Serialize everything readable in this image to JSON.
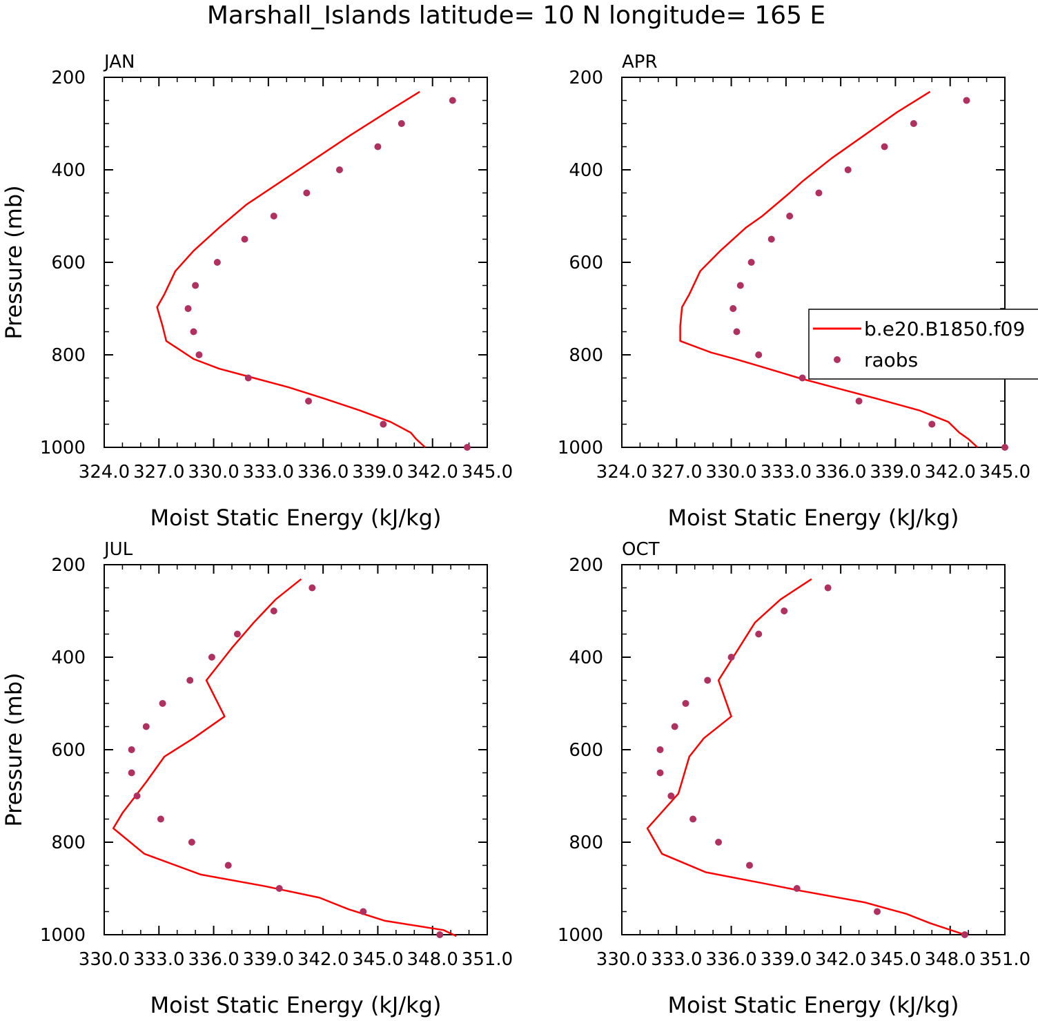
{
  "figure": {
    "title": "Marshall_Islands  latitude= 10 N longitude= 165 E"
  },
  "colors": {
    "model_line": "#ff0000",
    "raobs_marker": "#b03060",
    "axis": "#000000",
    "background": "#ffffff"
  },
  "legend": {
    "placement": "right edge of APR panel, middle",
    "model_label": "b.e20.B1850.f09",
    "obs_label": "raobs"
  },
  "chart_data": [
    {
      "panel": "JAN",
      "type": "line",
      "xlabel": "Moist Static Energy (kJ/kg)",
      "ylabel": "Pressure (mb)",
      "xlim": [
        324,
        345
      ],
      "ylim": [
        1000,
        200
      ],
      "x_ticks": [
        "324.0",
        "327.0",
        "330.0",
        "333.0",
        "336.0",
        "339.0",
        "342.0",
        "345.0"
      ],
      "y_ticks": [
        "200",
        "400",
        "600",
        "800",
        "1000"
      ],
      "grid": false,
      "series": [
        {
          "name": "b.e20.B1850.f09",
          "kind": "line",
          "points": [
            [
              341.3,
              231
            ],
            [
              339.5,
              275
            ],
            [
              337.5,
              325
            ],
            [
              335.6,
              375
            ],
            [
              333.7,
              425
            ],
            [
              331.8,
              475
            ],
            [
              330.3,
              525
            ],
            [
              328.9,
              575
            ],
            [
              327.9,
              619
            ],
            [
              327.3,
              669
            ],
            [
              326.9,
              697
            ],
            [
              327.2,
              738
            ],
            [
              327.4,
              770
            ],
            [
              328.9,
              809
            ],
            [
              330.3,
              830
            ],
            [
              332.2,
              850
            ],
            [
              334.1,
              870
            ],
            [
              336.1,
              895
            ],
            [
              338.0,
              920
            ],
            [
              339.7,
              945
            ],
            [
              340.8,
              968
            ],
            [
              341.1,
              982
            ],
            [
              341.6,
              1000
            ]
          ]
        },
        {
          "name": "raobs",
          "kind": "scatter",
          "points": [
            [
              343.1,
              250
            ],
            [
              340.3,
              300
            ],
            [
              339.0,
              350
            ],
            [
              336.9,
              400
            ],
            [
              335.1,
              450
            ],
            [
              333.3,
              500
            ],
            [
              331.7,
              550
            ],
            [
              330.2,
              600
            ],
            [
              329.0,
              650
            ],
            [
              328.6,
              700
            ],
            [
              328.9,
              750
            ],
            [
              329.2,
              800
            ],
            [
              331.9,
              850
            ],
            [
              335.2,
              900
            ],
            [
              339.3,
              950
            ],
            [
              343.9,
              1000
            ]
          ]
        }
      ]
    },
    {
      "panel": "APR",
      "type": "line",
      "xlabel": "Moist Static Energy (kJ/kg)",
      "ylabel": "",
      "xlim": [
        324,
        345
      ],
      "ylim": [
        1000,
        200
      ],
      "x_ticks": [
        "324.0",
        "327.0",
        "330.0",
        "333.0",
        "336.0",
        "339.0",
        "342.0",
        "345.0"
      ],
      "y_ticks": [
        "200",
        "400",
        "600",
        "800",
        "1000"
      ],
      "grid": false,
      "series": [
        {
          "name": "b.e20.B1850.f09",
          "kind": "line",
          "points": [
            [
              340.9,
              231
            ],
            [
              339.1,
              275
            ],
            [
              337.3,
              325
            ],
            [
              335.5,
              375
            ],
            [
              333.9,
              425
            ],
            [
              333.2,
              450
            ],
            [
              331.7,
              500
            ],
            [
              330.8,
              525
            ],
            [
              329.4,
              575
            ],
            [
              328.3,
              619
            ],
            [
              327.7,
              669
            ],
            [
              327.3,
              697
            ],
            [
              327.2,
              738
            ],
            [
              327.2,
              770
            ],
            [
              328.9,
              795
            ],
            [
              330.3,
              810
            ],
            [
              331.6,
              825
            ],
            [
              333.7,
              850
            ],
            [
              335.6,
              870
            ],
            [
              338.0,
              895
            ],
            [
              340.3,
              920
            ],
            [
              341.9,
              945
            ],
            [
              342.5,
              968
            ],
            [
              343.0,
              982
            ],
            [
              343.5,
              1000
            ]
          ]
        },
        {
          "name": "raobs",
          "kind": "scatter",
          "points": [
            [
              342.9,
              250
            ],
            [
              340.0,
              300
            ],
            [
              338.4,
              350
            ],
            [
              336.4,
              400
            ],
            [
              334.8,
              450
            ],
            [
              333.2,
              500
            ],
            [
              332.2,
              550
            ],
            [
              331.1,
              600
            ],
            [
              330.5,
              650
            ],
            [
              330.1,
              700
            ],
            [
              330.3,
              750
            ],
            [
              331.5,
              800
            ],
            [
              333.9,
              850
            ],
            [
              337.0,
              900
            ],
            [
              341.0,
              950
            ],
            [
              345.0,
              1000
            ]
          ]
        }
      ]
    },
    {
      "panel": "JUL",
      "type": "line",
      "xlabel": "Moist Static Energy (kJ/kg)",
      "ylabel": "Pressure (mb)",
      "xlim": [
        330,
        351
      ],
      "ylim": [
        1000,
        200
      ],
      "x_ticks": [
        "330.0",
        "333.0",
        "336.0",
        "339.0",
        "342.0",
        "345.0",
        "348.0",
        "351.0"
      ],
      "y_ticks": [
        "200",
        "400",
        "600",
        "800",
        "1000"
      ],
      "grid": false,
      "series": [
        {
          "name": "b.e20.B1850.f09",
          "kind": "line",
          "points": [
            [
              340.8,
              231
            ],
            [
              339.4,
              275
            ],
            [
              338.2,
              325
            ],
            [
              337.0,
              380
            ],
            [
              335.6,
              450
            ],
            [
              336.6,
              528
            ],
            [
              334.9,
              575
            ],
            [
              333.3,
              615
            ],
            [
              332.3,
              670
            ],
            [
              331.0,
              737
            ],
            [
              330.5,
              770
            ],
            [
              332.2,
              825
            ],
            [
              335.3,
              870
            ],
            [
              338.8,
              895
            ],
            [
              341.8,
              920
            ],
            [
              343.4,
              945
            ],
            [
              345.4,
              970
            ],
            [
              348.6,
              990
            ],
            [
              349.3,
              1003
            ]
          ]
        },
        {
          "name": "raobs",
          "kind": "scatter",
          "points": [
            [
              341.4,
              250
            ],
            [
              339.3,
              300
            ],
            [
              337.3,
              350
            ],
            [
              335.9,
              400
            ],
            [
              334.7,
              450
            ],
            [
              333.2,
              500
            ],
            [
              332.3,
              550
            ],
            [
              331.5,
              600
            ],
            [
              331.5,
              650
            ],
            [
              331.8,
              700
            ],
            [
              333.1,
              750
            ],
            [
              334.8,
              800
            ],
            [
              336.8,
              850
            ],
            [
              339.6,
              900
            ],
            [
              344.2,
              950
            ],
            [
              348.4,
              1000
            ]
          ]
        }
      ]
    },
    {
      "panel": "OCT",
      "type": "line",
      "xlabel": "Moist Static Energy (kJ/kg)",
      "ylabel": "",
      "xlim": [
        330,
        351
      ],
      "ylim": [
        1000,
        200
      ],
      "x_ticks": [
        "330.0",
        "333.0",
        "336.0",
        "339.0",
        "342.0",
        "345.0",
        "348.0",
        "351.0"
      ],
      "y_ticks": [
        "200",
        "400",
        "600",
        "800",
        "1000"
      ],
      "grid": false,
      "series": [
        {
          "name": "b.e20.B1850.f09",
          "kind": "line",
          "points": [
            [
              340.4,
              231
            ],
            [
              338.7,
              275
            ],
            [
              337.3,
              325
            ],
            [
              336.5,
              375
            ],
            [
              335.3,
              450
            ],
            [
              336.0,
              528
            ],
            [
              334.5,
              575
            ],
            [
              333.7,
              615
            ],
            [
              333.1,
              695
            ],
            [
              331.4,
              770
            ],
            [
              332.2,
              825
            ],
            [
              334.6,
              865
            ],
            [
              337.9,
              890
            ],
            [
              339.8,
              905
            ],
            [
              343.3,
              930
            ],
            [
              345.6,
              955
            ],
            [
              346.9,
              975
            ],
            [
              348.8,
              1000
            ]
          ]
        },
        {
          "name": "raobs",
          "kind": "scatter",
          "points": [
            [
              341.3,
              250
            ],
            [
              338.9,
              300
            ],
            [
              337.5,
              350
            ],
            [
              336.0,
              400
            ],
            [
              334.7,
              450
            ],
            [
              333.5,
              500
            ],
            [
              332.9,
              550
            ],
            [
              332.1,
              600
            ],
            [
              332.1,
              650
            ],
            [
              332.7,
              700
            ],
            [
              333.9,
              750
            ],
            [
              335.3,
              800
            ],
            [
              337.0,
              850
            ],
            [
              339.6,
              900
            ],
            [
              344.0,
              950
            ],
            [
              348.8,
              1000
            ]
          ]
        }
      ]
    }
  ]
}
